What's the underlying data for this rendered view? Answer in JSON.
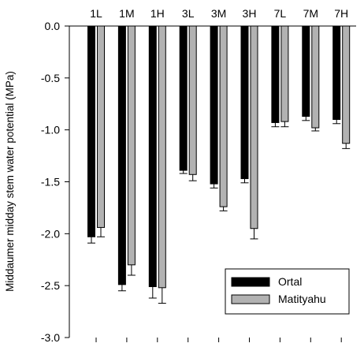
{
  "chart_data": {
    "type": "bar",
    "ylabel": "Middaumer midday stem water potential (MPa)",
    "ylim": [
      -3.0,
      0.0
    ],
    "yticks": [
      "0.0",
      "-0.5",
      "-1.0",
      "-1.5",
      "-2.0",
      "-2.5",
      "-3.0"
    ],
    "ytick_values": [
      0.0,
      -0.5,
      -1.0,
      -1.5,
      -2.0,
      -2.5,
      -3.0
    ],
    "categories": [
      "1L",
      "1M",
      "1H",
      "3L",
      "3M",
      "3H",
      "7L",
      "7M",
      "7H"
    ],
    "legend_position": "bottom-right",
    "grid": false,
    "series": [
      {
        "name": "Ortal",
        "color": "#000000",
        "values": [
          -2.03,
          -2.49,
          -2.51,
          -1.39,
          -1.52,
          -1.47,
          -0.93,
          -0.87,
          -0.9
        ],
        "errors": [
          0.06,
          0.06,
          0.11,
          0.03,
          0.04,
          0.04,
          0.04,
          0.04,
          0.04
        ]
      },
      {
        "name": "Matityahu",
        "color": "#b2b2b2",
        "values": [
          -1.94,
          -2.3,
          -2.52,
          -1.43,
          -1.74,
          -1.95,
          -0.92,
          -0.98,
          -1.13
        ],
        "errors": [
          0.09,
          0.1,
          0.15,
          0.06,
          0.04,
          0.1,
          0.05,
          0.03,
          0.05
        ]
      }
    ]
  }
}
